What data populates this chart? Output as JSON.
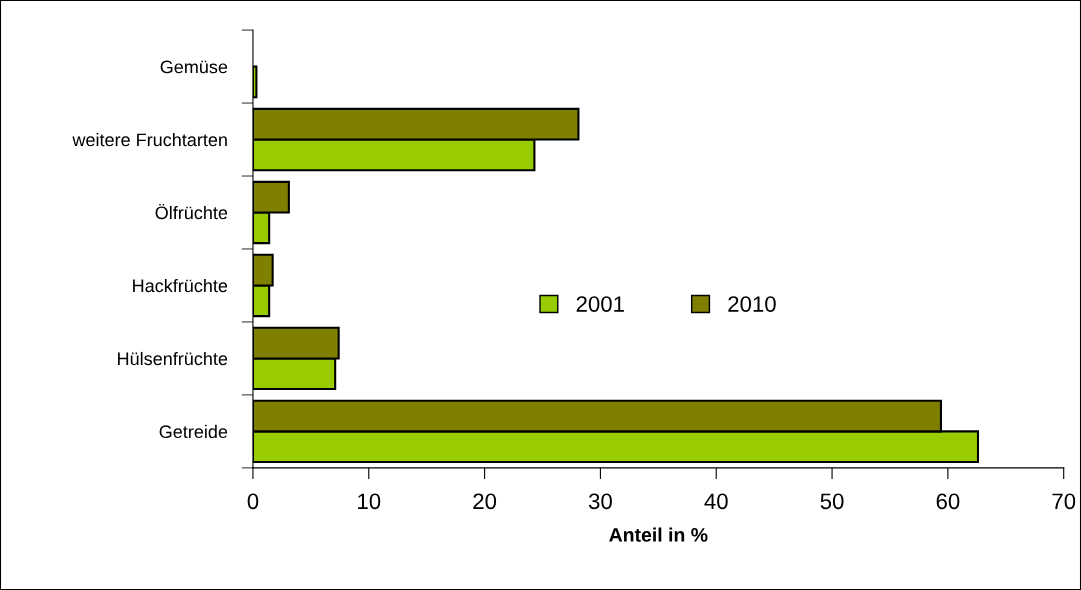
{
  "chart_data": {
    "type": "bar",
    "orientation": "horizontal",
    "xlabel": "Anteil in %",
    "categories": [
      "Gemüse",
      "weitere Fruchtarten",
      "Ölfrüchte",
      "Hackfrüchte",
      "Hülsenfrüchte",
      "Getreide"
    ],
    "series": [
      {
        "name": "2001",
        "color": "#99cc00",
        "values": [
          0.3,
          24.3,
          1.4,
          1.4,
          7.1,
          62.6
        ]
      },
      {
        "name": "2010",
        "color": "#808000",
        "values": [
          null,
          28.1,
          3.1,
          1.7,
          7.4,
          59.4
        ]
      }
    ],
    "xlim": [
      0,
      70
    ],
    "xticks": [
      0,
      10,
      20,
      30,
      40,
      50,
      60,
      70
    ],
    "grid": false,
    "legend": "center"
  }
}
